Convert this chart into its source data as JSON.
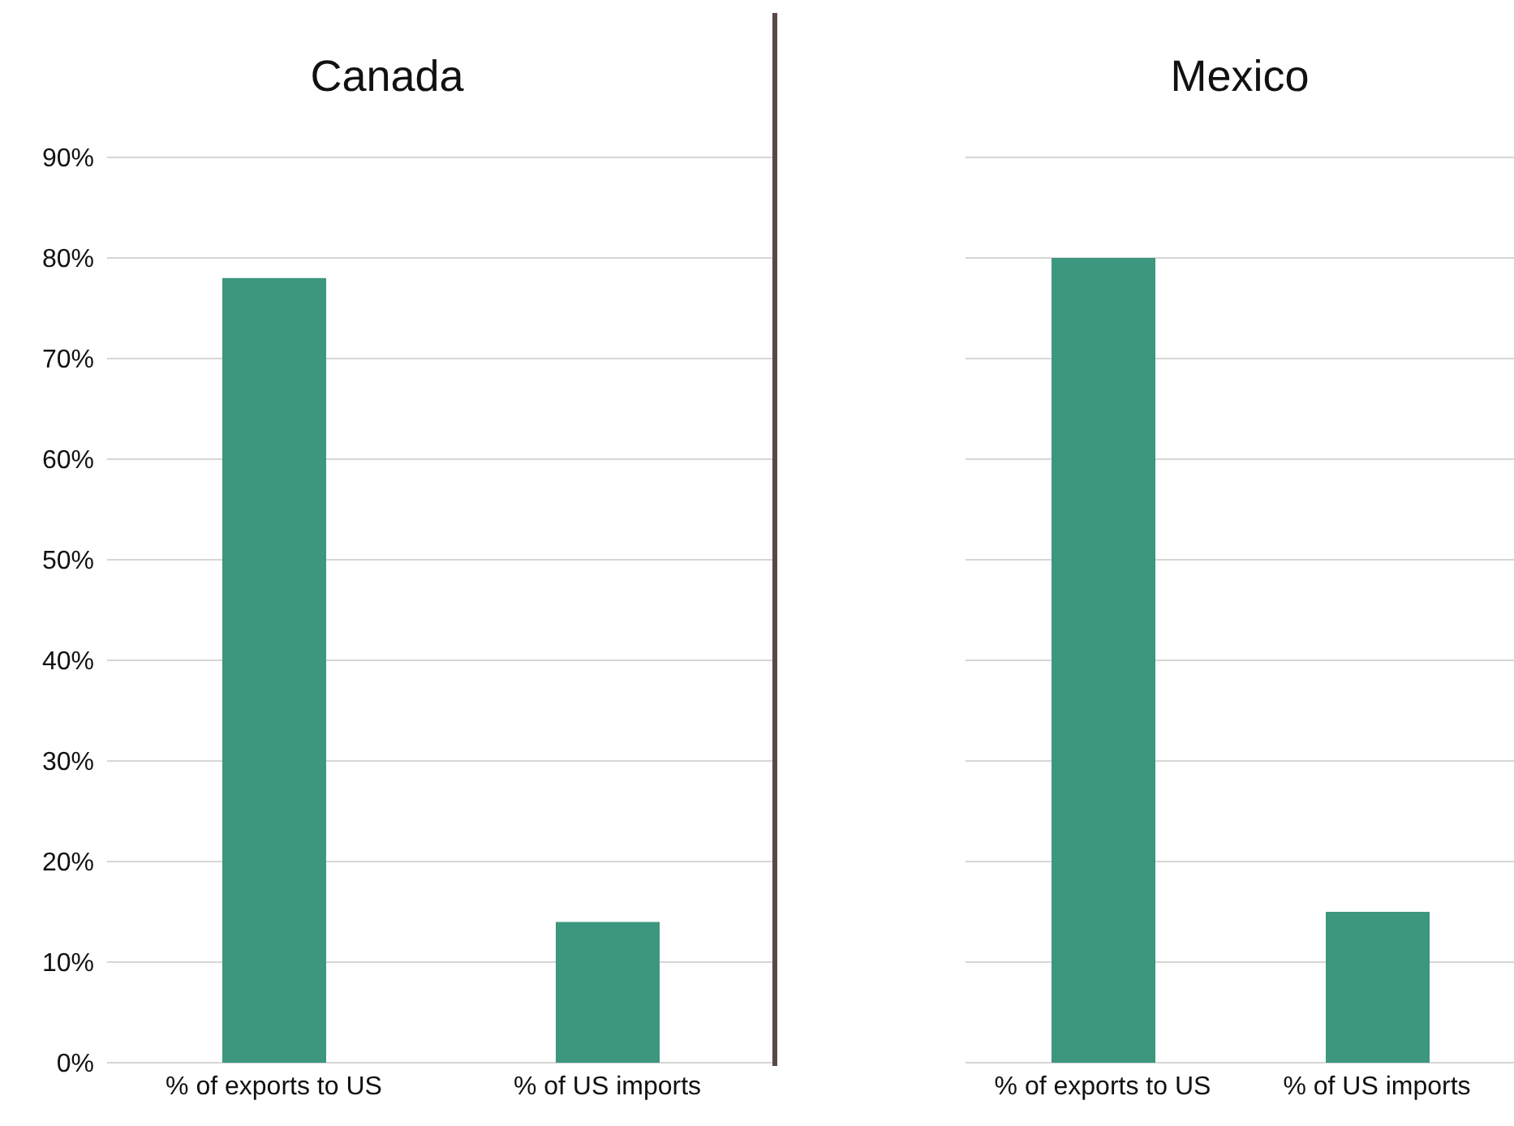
{
  "chart_data": [
    {
      "type": "bar",
      "title": "Canada",
      "categories": [
        "% of exports to US",
        "% of US imports"
      ],
      "values": [
        78,
        14
      ],
      "color": "#3d967e",
      "ylim": [
        0,
        90
      ],
      "yticks": [
        {
          "value": 0,
          "label": "0%"
        },
        {
          "value": 10,
          "label": "10%"
        },
        {
          "value": 20,
          "label": "20%"
        },
        {
          "value": 30,
          "label": "30%"
        },
        {
          "value": 40,
          "label": "40%"
        },
        {
          "value": 50,
          "label": "50%"
        },
        {
          "value": 60,
          "label": "60%"
        },
        {
          "value": 70,
          "label": "70%"
        },
        {
          "value": 80,
          "label": "80%"
        },
        {
          "value": 90,
          "label": "90%"
        }
      ],
      "grid": "y"
    },
    {
      "type": "bar",
      "title": "Mexico",
      "categories": [
        "% of exports to US",
        "% of US imports"
      ],
      "values": [
        80,
        15
      ],
      "color": "#3d967e",
      "ylim": [
        0,
        90
      ],
      "yticks": [
        {
          "value": 0,
          "label": null
        },
        {
          "value": 10,
          "label": null
        },
        {
          "value": 20,
          "label": null
        },
        {
          "value": 30,
          "label": null
        },
        {
          "value": 40,
          "label": null
        },
        {
          "value": 50,
          "label": null
        },
        {
          "value": 60,
          "label": null
        },
        {
          "value": 70,
          "label": null
        },
        {
          "value": 80,
          "label": null
        },
        {
          "value": 90,
          "label": null
        }
      ],
      "grid": "y",
      "tick_labels": "x"
    }
  ]
}
